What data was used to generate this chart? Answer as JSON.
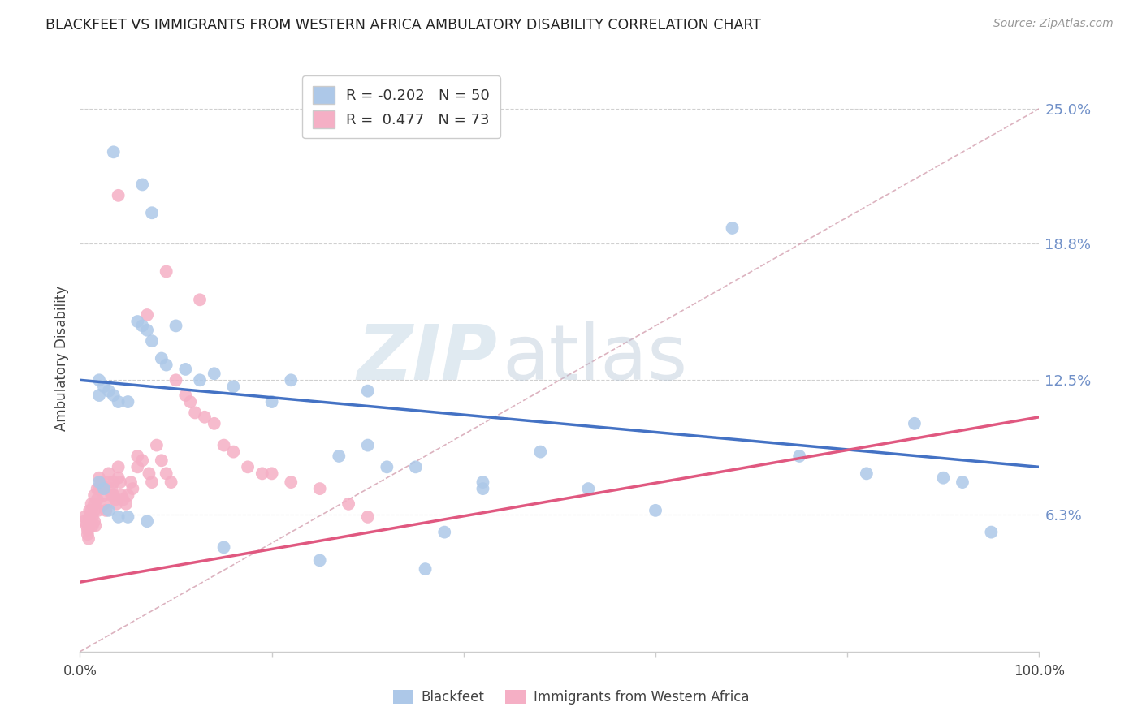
{
  "title": "BLACKFEET VS IMMIGRANTS FROM WESTERN AFRICA AMBULATORY DISABILITY CORRELATION CHART",
  "source": "Source: ZipAtlas.com",
  "ylabel": "Ambulatory Disability",
  "ytick_labels": [
    "6.3%",
    "12.5%",
    "18.8%",
    "25.0%"
  ],
  "ytick_values": [
    0.063,
    0.125,
    0.188,
    0.25
  ],
  "ymin": 0.0,
  "ymax": 0.27,
  "xmin": 0.0,
  "xmax": 1.0,
  "legend_blue_r": "-0.202",
  "legend_blue_n": "50",
  "legend_pink_r": "0.477",
  "legend_pink_n": "73",
  "blue_color": "#adc8e8",
  "pink_color": "#f5afc5",
  "blue_line_color": "#4472c4",
  "pink_line_color": "#e05880",
  "dashed_line_color": "#d4a0b0",
  "watermark_zip": "ZIP",
  "watermark_atlas": "atlas",
  "blue_line_x0": 0.0,
  "blue_line_y0": 0.125,
  "blue_line_x1": 1.0,
  "blue_line_y1": 0.085,
  "pink_line_x0": 0.0,
  "pink_line_y0": 0.032,
  "pink_line_x1": 1.0,
  "pink_line_y1": 0.108,
  "blue_scatter_x": [
    0.035,
    0.065,
    0.075,
    0.02,
    0.02,
    0.025,
    0.03,
    0.035,
    0.04,
    0.05,
    0.06,
    0.065,
    0.07,
    0.075,
    0.085,
    0.09,
    0.1,
    0.11,
    0.125,
    0.14,
    0.16,
    0.2,
    0.22,
    0.27,
    0.3,
    0.3,
    0.32,
    0.35,
    0.38,
    0.42,
    0.48,
    0.53,
    0.6,
    0.68,
    0.75,
    0.82,
    0.87,
    0.9,
    0.92,
    0.95,
    0.02,
    0.025,
    0.03,
    0.04,
    0.05,
    0.07,
    0.15,
    0.25,
    0.36,
    0.42
  ],
  "blue_scatter_y": [
    0.23,
    0.215,
    0.202,
    0.125,
    0.118,
    0.122,
    0.12,
    0.118,
    0.115,
    0.115,
    0.152,
    0.15,
    0.148,
    0.143,
    0.135,
    0.132,
    0.15,
    0.13,
    0.125,
    0.128,
    0.122,
    0.115,
    0.125,
    0.09,
    0.12,
    0.095,
    0.085,
    0.085,
    0.055,
    0.075,
    0.092,
    0.075,
    0.065,
    0.195,
    0.09,
    0.082,
    0.105,
    0.08,
    0.078,
    0.055,
    0.078,
    0.075,
    0.065,
    0.062,
    0.062,
    0.06,
    0.048,
    0.042,
    0.038,
    0.078
  ],
  "pink_scatter_x": [
    0.005,
    0.005,
    0.007,
    0.008,
    0.008,
    0.009,
    0.01,
    0.01,
    0.01,
    0.012,
    0.012,
    0.013,
    0.013,
    0.015,
    0.015,
    0.015,
    0.015,
    0.016,
    0.018,
    0.018,
    0.019,
    0.02,
    0.02,
    0.022,
    0.023,
    0.025,
    0.025,
    0.027,
    0.03,
    0.03,
    0.033,
    0.033,
    0.035,
    0.035,
    0.037,
    0.038,
    0.04,
    0.04,
    0.042,
    0.043,
    0.045,
    0.048,
    0.05,
    0.053,
    0.055,
    0.06,
    0.06,
    0.065,
    0.07,
    0.072,
    0.075,
    0.08,
    0.085,
    0.09,
    0.095,
    0.1,
    0.11,
    0.115,
    0.12,
    0.125,
    0.13,
    0.14,
    0.15,
    0.16,
    0.175,
    0.19,
    0.2,
    0.22,
    0.25,
    0.28,
    0.3,
    0.04,
    0.09
  ],
  "pink_scatter_y": [
    0.062,
    0.06,
    0.058,
    0.056,
    0.054,
    0.052,
    0.065,
    0.062,
    0.058,
    0.068,
    0.065,
    0.062,
    0.058,
    0.072,
    0.068,
    0.065,
    0.06,
    0.058,
    0.075,
    0.07,
    0.065,
    0.08,
    0.075,
    0.078,
    0.075,
    0.072,
    0.068,
    0.065,
    0.082,
    0.078,
    0.075,
    0.072,
    0.078,
    0.072,
    0.07,
    0.068,
    0.085,
    0.08,
    0.078,
    0.072,
    0.07,
    0.068,
    0.072,
    0.078,
    0.075,
    0.09,
    0.085,
    0.088,
    0.155,
    0.082,
    0.078,
    0.095,
    0.088,
    0.082,
    0.078,
    0.125,
    0.118,
    0.115,
    0.11,
    0.162,
    0.108,
    0.105,
    0.095,
    0.092,
    0.085,
    0.082,
    0.082,
    0.078,
    0.075,
    0.068,
    0.062,
    0.21,
    0.175
  ]
}
